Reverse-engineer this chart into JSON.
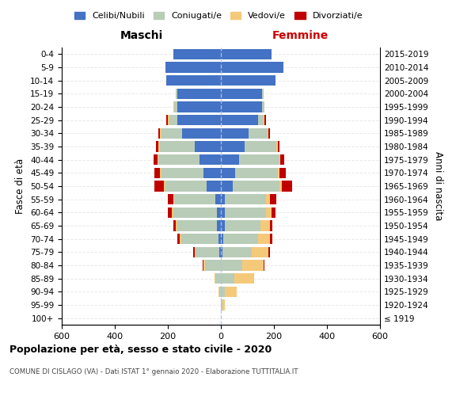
{
  "age_groups": [
    "100+",
    "95-99",
    "90-94",
    "85-89",
    "80-84",
    "75-79",
    "70-74",
    "65-69",
    "60-64",
    "55-59",
    "50-54",
    "45-49",
    "40-44",
    "35-39",
    "30-34",
    "25-29",
    "20-24",
    "15-19",
    "10-14",
    "5-9",
    "0-4"
  ],
  "birth_years": [
    "≤ 1919",
    "1920-1924",
    "1925-1929",
    "1930-1934",
    "1935-1939",
    "1940-1944",
    "1945-1949",
    "1950-1954",
    "1955-1959",
    "1960-1964",
    "1965-1969",
    "1970-1974",
    "1975-1979",
    "1980-1984",
    "1985-1989",
    "1990-1994",
    "1995-1999",
    "2000-2004",
    "2005-2009",
    "2010-2014",
    "2015-2019"
  ],
  "males": {
    "celibi": [
      0,
      0,
      0,
      0,
      0,
      5,
      10,
      15,
      15,
      20,
      55,
      65,
      80,
      100,
      145,
      165,
      165,
      165,
      205,
      210,
      180
    ],
    "coniugati": [
      0,
      0,
      5,
      20,
      60,
      90,
      140,
      150,
      165,
      155,
      155,
      160,
      155,
      130,
      80,
      30,
      10,
      5,
      0,
      0,
      0
    ],
    "vedovi": [
      0,
      0,
      5,
      5,
      5,
      5,
      5,
      5,
      5,
      5,
      5,
      5,
      5,
      5,
      5,
      5,
      5,
      0,
      0,
      0,
      0
    ],
    "divorziati": [
      0,
      0,
      0,
      0,
      5,
      5,
      10,
      10,
      15,
      20,
      35,
      20,
      15,
      10,
      5,
      5,
      0,
      0,
      0,
      0,
      0
    ]
  },
  "females": {
    "nubili": [
      0,
      0,
      0,
      0,
      0,
      5,
      10,
      15,
      15,
      15,
      45,
      55,
      70,
      90,
      105,
      140,
      155,
      155,
      205,
      235,
      190
    ],
    "coniugate": [
      0,
      5,
      15,
      50,
      80,
      110,
      130,
      135,
      155,
      155,
      175,
      160,
      150,
      120,
      70,
      20,
      10,
      5,
      0,
      0,
      0
    ],
    "vedove": [
      0,
      10,
      45,
      75,
      80,
      65,
      45,
      35,
      20,
      15,
      10,
      5,
      5,
      5,
      5,
      5,
      0,
      0,
      0,
      0,
      0
    ],
    "divorziate": [
      0,
      0,
      0,
      0,
      5,
      5,
      10,
      10,
      15,
      25,
      40,
      25,
      15,
      5,
      5,
      5,
      0,
      0,
      0,
      0,
      0
    ]
  },
  "colors": {
    "celibi": "#4472C4",
    "coniugati": "#B8CCB8",
    "vedovi": "#F5C97A",
    "divorziati": "#C00000"
  },
  "xlim": 600,
  "xlabel_left": "Maschi",
  "xlabel_right": "Femmine",
  "ylabel_left": "Fasce di età",
  "ylabel_right": "Anni di nascita",
  "title": "Popolazione per età, sesso e stato civile - 2020",
  "subtitle": "COMUNE DI CISLAGO (VA) - Dati ISTAT 1° gennaio 2020 - Elaborazione TUTTITALIA.IT",
  "legend_labels": [
    "Celibi/Nubili",
    "Coniugati/e",
    "Vedovi/e",
    "Divorziati/e"
  ],
  "bg_color": "#FFFFFF",
  "bar_height": 0.8
}
